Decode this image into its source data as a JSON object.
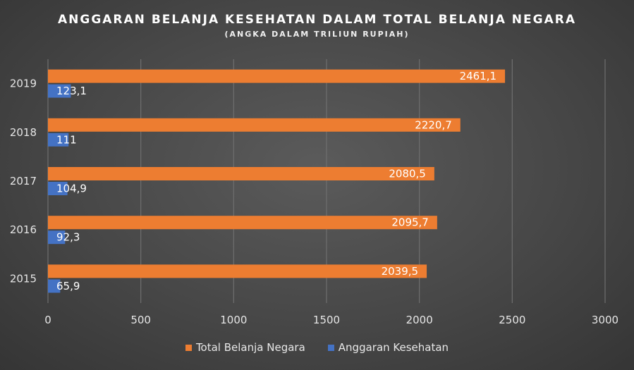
{
  "chart_data": {
    "type": "bar",
    "orientation": "horizontal",
    "title": "ANGGARAN BELANJA KESEHATAN DALAM TOTAL BELANJA NEGARA",
    "subtitle": "(ANGKA DALAM TRILIUN RUPIAH)",
    "categories": [
      "2015",
      "2016",
      "2017",
      "2018",
      "2019"
    ],
    "series": [
      {
        "name": "Total Belanja Negara",
        "color": "#ed7d31",
        "values": [
          2039.5,
          2095.7,
          2080.5,
          2220.7,
          2461.1
        ],
        "labels": [
          "2039,5",
          "2095,7",
          "2080,5",
          "2220,7",
          "2461,1"
        ]
      },
      {
        "name": "Anggaran Kesehatan",
        "color": "#4472c4",
        "values": [
          65.9,
          92.3,
          104.9,
          111,
          123.1
        ],
        "labels": [
          "65,9",
          "92,3",
          "104,9",
          "111",
          "123,1"
        ]
      }
    ],
    "xlim": [
      0,
      3000
    ],
    "xticks": [
      0,
      500,
      1000,
      1500,
      2000,
      2500,
      3000
    ],
    "grid": true,
    "legend": "bottom"
  }
}
